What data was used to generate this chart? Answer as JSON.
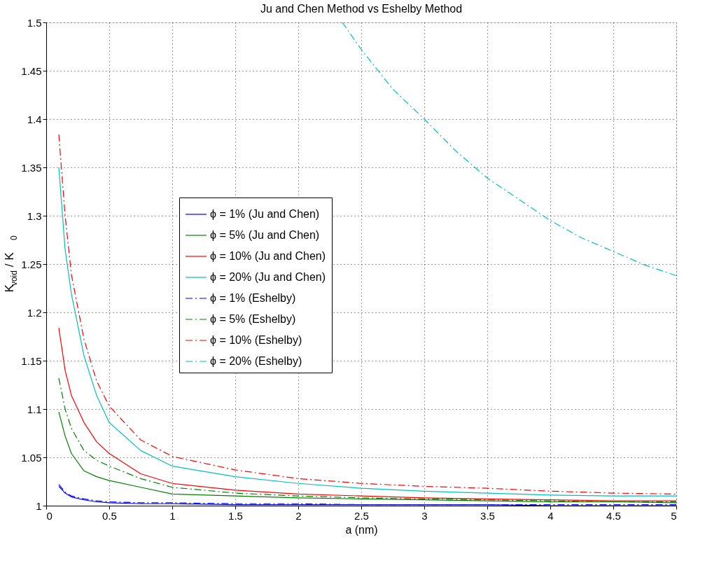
{
  "chart_data": {
    "type": "line",
    "title": "Ju and Chen Method vs Eshelby Method",
    "xlabel": "a (nm)",
    "ylabel": "K$_{void}$ / K$_{0}$",
    "x": [
      0.1,
      0.15,
      0.2,
      0.3,
      0.4,
      0.5,
      0.75,
      1.0,
      1.5,
      2.0,
      2.5,
      3.0,
      3.5,
      4.0,
      4.5,
      5.0
    ],
    "series": [
      {
        "name": "ϕ = 1% (Ju and Chen)",
        "color": "#0000ff",
        "line_style": "solid",
        "values": [
          1.02,
          1.013,
          1.009,
          1.006,
          1.004,
          1.003,
          1.002,
          1.002,
          1.001,
          1.001,
          1.001,
          1.001,
          1.001,
          1.0,
          1.0,
          1.0
        ]
      },
      {
        "name": "ϕ = 5% (Ju and Chen)",
        "color": "#008000",
        "line_style": "solid",
        "values": [
          1.097,
          1.072,
          1.054,
          1.036,
          1.03,
          1.026,
          1.019,
          1.012,
          1.01,
          1.008,
          1.007,
          1.006,
          1.005,
          1.004,
          1.004,
          1.003
        ]
      },
      {
        "name": "ϕ = 10% (Ju and Chen)",
        "color": "#ff0000",
        "line_style": "solid",
        "values": [
          1.184,
          1.14,
          1.114,
          1.086,
          1.066,
          1.054,
          1.033,
          1.023,
          1.016,
          1.012,
          1.01,
          1.008,
          1.007,
          1.006,
          1.005,
          1.005
        ]
      },
      {
        "name": "ϕ = 20% (Ju and Chen)",
        "color": "#00bfbf",
        "line_style": "solid",
        "values": [
          1.35,
          1.265,
          1.219,
          1.155,
          1.114,
          1.086,
          1.057,
          1.041,
          1.03,
          1.023,
          1.018,
          1.015,
          1.013,
          1.011,
          1.01,
          1.01
        ]
      },
      {
        "name": "ϕ = 1% (Eshelby)",
        "color": "#0000ff",
        "line_style": "dashdot",
        "values": [
          1.022,
          1.014,
          1.01,
          1.007,
          1.005,
          1.004,
          1.003,
          1.003,
          1.002,
          1.002,
          1.001,
          1.001,
          1.001,
          1.001,
          1.001,
          1.001
        ]
      },
      {
        "name": "ϕ = 5% (Eshelby)",
        "color": "#008000",
        "line_style": "dashdot",
        "values": [
          1.132,
          1.1,
          1.08,
          1.057,
          1.047,
          1.041,
          1.028,
          1.019,
          1.013,
          1.01,
          1.008,
          1.007,
          1.006,
          1.005,
          1.004,
          1.004
        ]
      },
      {
        "name": "ϕ = 10% (Eshelby)",
        "color": "#ff0000",
        "line_style": "dashdot",
        "values": [
          1.384,
          1.3,
          1.239,
          1.172,
          1.129,
          1.103,
          1.068,
          1.051,
          1.037,
          1.028,
          1.023,
          1.02,
          1.018,
          1.015,
          1.013,
          1.012
        ]
      },
      {
        "name": "ϕ = 20% (Eshelby)",
        "color": "#00bfbf",
        "line_style": "dashdot",
        "x": [
          2.35,
          2.5,
          2.75,
          3.0,
          3.25,
          3.5,
          3.75,
          4.0,
          4.25,
          4.5,
          4.75,
          5.0
        ],
        "values": [
          1.5,
          1.472,
          1.431,
          1.4,
          1.367,
          1.339,
          1.317,
          1.295,
          1.277,
          1.263,
          1.249,
          1.238
        ]
      }
    ],
    "xlim": [
      0,
      5
    ],
    "xticks": [
      0,
      0.5,
      1,
      1.5,
      2,
      2.5,
      3,
      3.5,
      4,
      4.5,
      5
    ],
    "ylim": [
      1,
      1.5
    ],
    "yticks": [
      1,
      1.05,
      1.1,
      1.15,
      1.2,
      1.25,
      1.3,
      1.35,
      1.4,
      1.45,
      1.5
    ],
    "grid": true,
    "legend": "left",
    "marker": "none"
  }
}
